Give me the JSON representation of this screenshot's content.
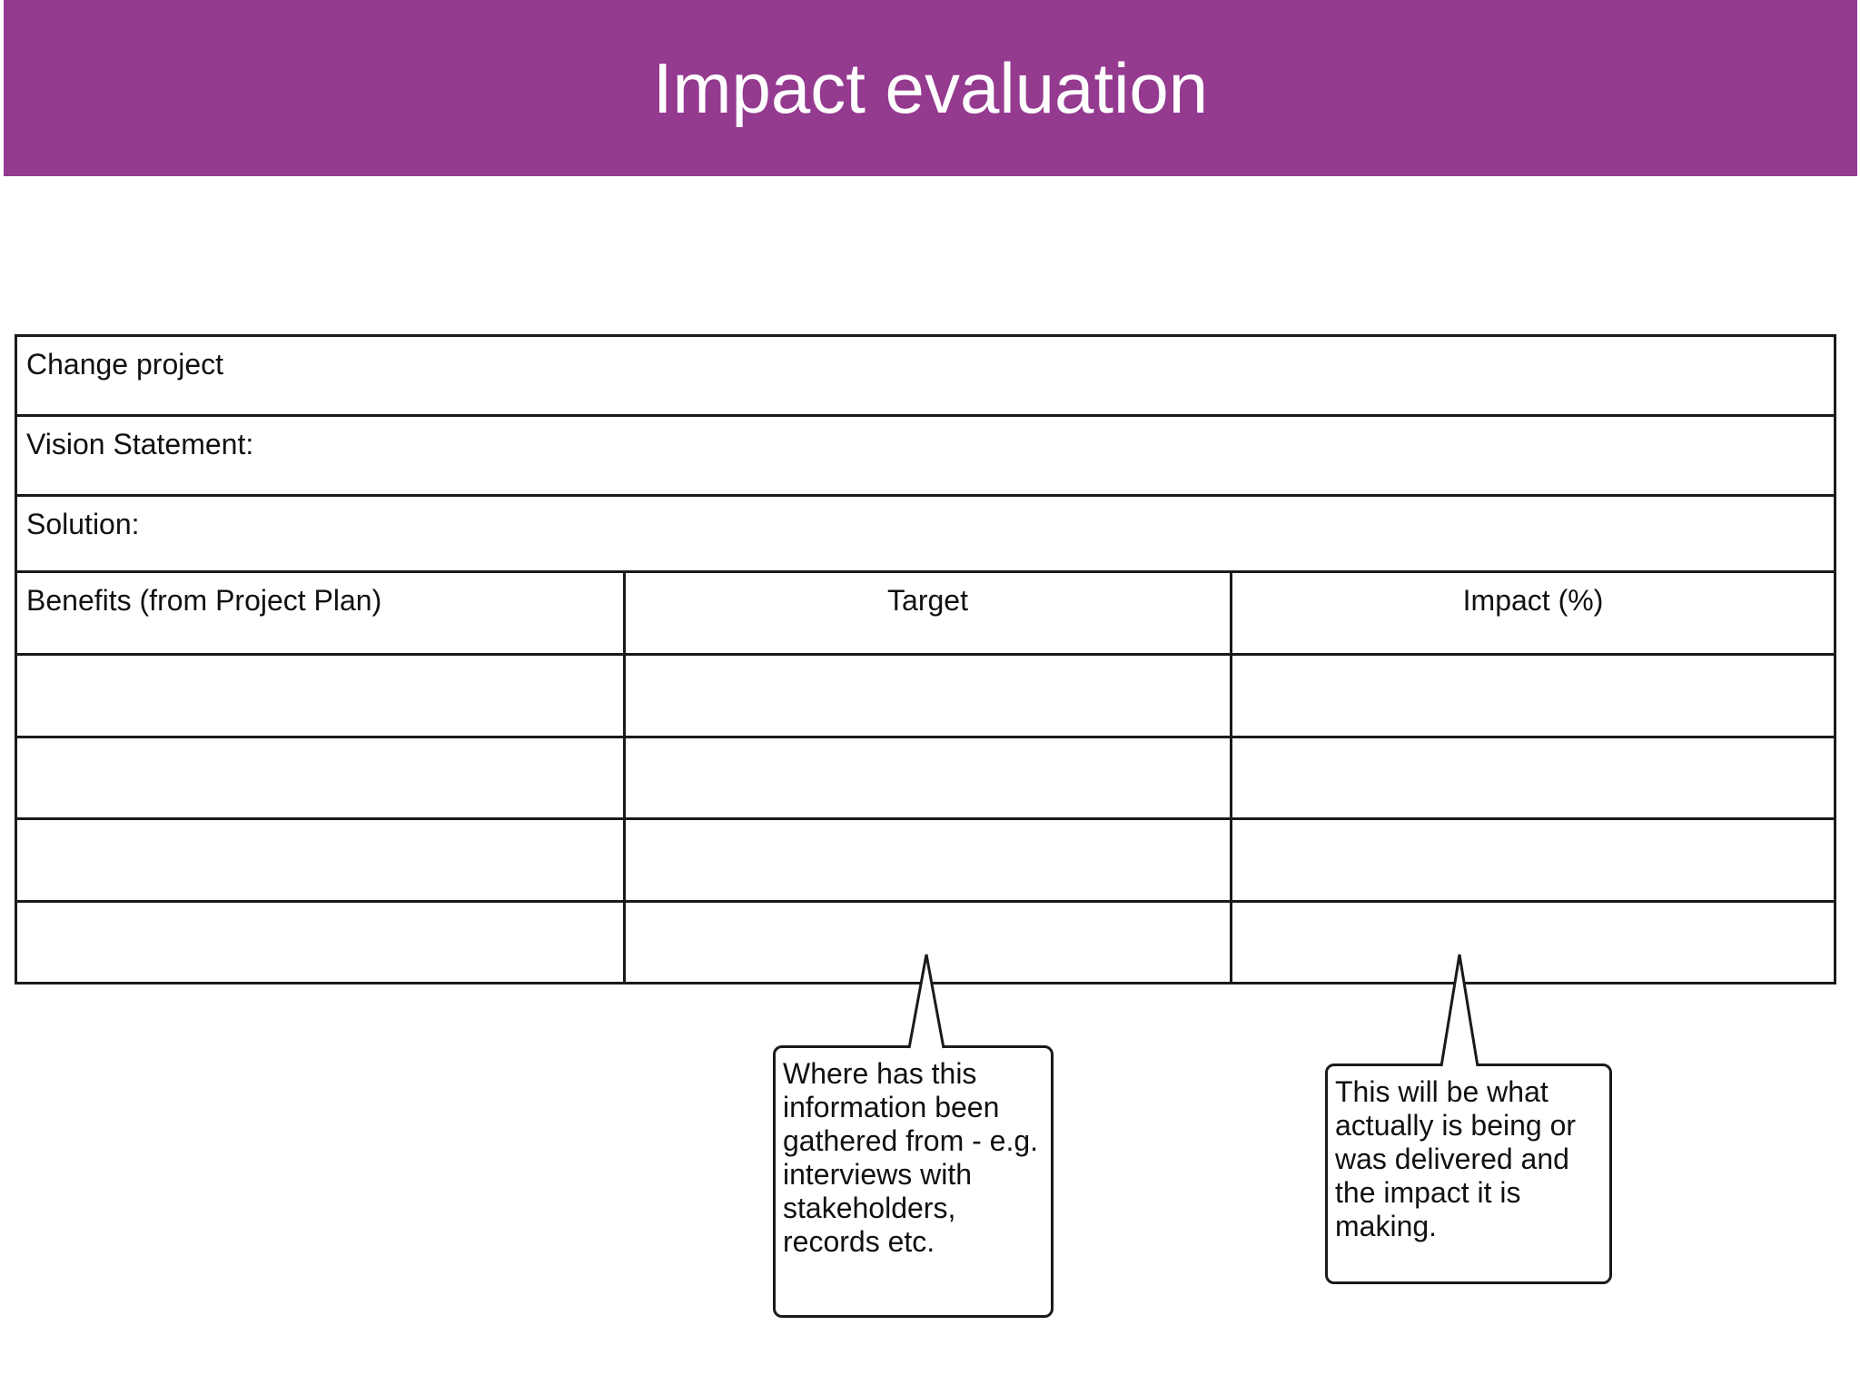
{
  "header": {
    "title": "Impact evaluation",
    "background_color": "#943a8f"
  },
  "table": {
    "rows": {
      "change_project": "Change project",
      "vision_statement": "Vision Statement:",
      "solution": "Solution:"
    },
    "columns": [
      "Benefits (from Project Plan)",
      "Target",
      "Impact (%)"
    ],
    "body_rows": [
      [
        "",
        "",
        ""
      ],
      [
        "",
        "",
        ""
      ],
      [
        "",
        "",
        ""
      ],
      [
        "",
        "",
        ""
      ]
    ]
  },
  "callouts": {
    "target_note": "Where has this information been gathered from - e.g. interviews with stakeholders, records etc.",
    "impact_note": "This will be what actually is being or was delivered and the impact it is making."
  }
}
